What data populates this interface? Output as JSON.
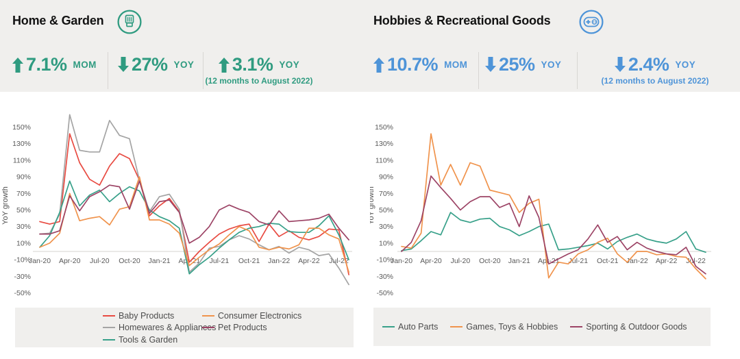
{
  "header": {
    "panels": [
      {
        "title": "Home & Garden",
        "icon": "blender-icon",
        "accent": "#2f9b80",
        "stats": [
          {
            "direction": "up",
            "value": "7.1%",
            "unit": "MOM",
            "caption": null
          },
          {
            "direction": "down",
            "value": "27%",
            "unit": "YOY",
            "caption": null
          },
          {
            "direction": "up",
            "value": "3.1%",
            "unit": "YOY",
            "caption": "(12 months to August 2022)"
          }
        ]
      },
      {
        "title": "Hobbies & Recreational Goods",
        "icon": "gamepad-icon",
        "accent": "#4e94d8",
        "stats": [
          {
            "direction": "up",
            "value": "10.7%",
            "unit": "MOM",
            "caption": null
          },
          {
            "direction": "down",
            "value": "25%",
            "unit": "YOY",
            "caption": null
          },
          {
            "direction": "down",
            "value": "2.4%",
            "unit": "YOY",
            "caption": "(12 months to August 2022)"
          }
        ]
      }
    ]
  },
  "chart_data": [
    {
      "type": "line",
      "title": "Home & Garden",
      "ylabel": "YoY growth",
      "ylim": [
        -50,
        170
      ],
      "yticks": [
        150,
        130,
        110,
        90,
        70,
        50,
        30,
        10,
        -10,
        -30,
        -50
      ],
      "x_tick_every": 3,
      "grid": "zero-line-only",
      "legend_position": "bottom",
      "x": [
        "Jan-20",
        "Feb-20",
        "Mar-20",
        "Apr-20",
        "May-20",
        "Jun-20",
        "Jul-20",
        "Aug-20",
        "Sep-20",
        "Oct-20",
        "Nov-20",
        "Dec-20",
        "Jan-21",
        "Feb-21",
        "Mar-21",
        "Apr-21",
        "May-21",
        "Jun-21",
        "Jul-21",
        "Aug-21",
        "Sep-21",
        "Oct-21",
        "Nov-21",
        "Dec-21",
        "Jan-22",
        "Feb-22",
        "Mar-22",
        "Apr-22",
        "May-22",
        "Jun-22",
        "Jul-22",
        "Aug-22"
      ],
      "series": [
        {
          "name": "Baby Products",
          "color": "#e84a41",
          "values": [
            36,
            33,
            36,
            142,
            107,
            87,
            80,
            103,
            118,
            112,
            86,
            43,
            55,
            64,
            48,
            -13,
            0,
            11,
            21,
            27,
            31,
            33,
            12,
            33,
            18,
            25,
            17,
            14,
            18,
            27,
            26,
            -28
          ]
        },
        {
          "name": "Homewares & Appliances",
          "color": "#a4a4a4",
          "values": [
            21,
            22,
            45,
            165,
            122,
            120,
            120,
            158,
            140,
            136,
            86,
            48,
            66,
            69,
            51,
            -25,
            -14,
            4,
            6,
            14,
            19,
            15,
            8,
            2,
            6,
            -2,
            5,
            2,
            -5,
            -3,
            -20,
            -40
          ]
        },
        {
          "name": "Tools & Garden",
          "color": "#37a089",
          "values": [
            5,
            19,
            47,
            85,
            55,
            68,
            74,
            60,
            70,
            78,
            73,
            50,
            42,
            37,
            28,
            -27,
            -16,
            -7,
            4,
            14,
            23,
            28,
            30,
            34,
            33,
            24,
            23,
            23,
            31,
            43,
            20,
            -10
          ]
        },
        {
          "name": "Consumer Electronics",
          "color": "#f0934c",
          "values": [
            5,
            10,
            22,
            70,
            37,
            40,
            42,
            32,
            51,
            54,
            90,
            38,
            38,
            33,
            22,
            -17,
            -7,
            2,
            9,
            20,
            30,
            25,
            5,
            2,
            5,
            3,
            8,
            28,
            28,
            20,
            15,
            -25
          ]
        },
        {
          "name": "Pet Products",
          "color": "#9c4365",
          "values": [
            21,
            21,
            25,
            67,
            49,
            66,
            72,
            80,
            78,
            51,
            85,
            46,
            60,
            62,
            47,
            10,
            17,
            30,
            50,
            56,
            51,
            47,
            36,
            32,
            49,
            36,
            37,
            38,
            40,
            45,
            28,
            14
          ]
        }
      ],
      "legend_order": [
        0,
        3,
        1,
        4,
        2
      ]
    },
    {
      "type": "line",
      "title": "Hobbies & Recreational Goods",
      "ylabel": "YoY growth",
      "ylim": [
        -50,
        170
      ],
      "yticks": [
        150,
        130,
        110,
        90,
        70,
        50,
        30,
        10,
        -10,
        -30,
        -50
      ],
      "x_tick_every": 3,
      "grid": "zero-line-only",
      "legend_position": "bottom",
      "x": [
        "Jan-20",
        "Feb-20",
        "Mar-20",
        "Apr-20",
        "May-20",
        "Jun-20",
        "Jul-20",
        "Aug-20",
        "Sep-20",
        "Oct-20",
        "Nov-20",
        "Dec-20",
        "Jan-21",
        "Feb-21",
        "Mar-21",
        "Apr-21",
        "May-21",
        "Jun-21",
        "Jul-21",
        "Aug-21",
        "Sep-21",
        "Oct-21",
        "Nov-21",
        "Dec-21",
        "Jan-22",
        "Feb-22",
        "Mar-22",
        "Apr-22",
        "May-22",
        "Jun-22",
        "Jul-22",
        "Aug-22"
      ],
      "series": [
        {
          "name": "Auto Parts",
          "color": "#37a089",
          "values": [
            1,
            3,
            13,
            24,
            20,
            47,
            38,
            35,
            39,
            40,
            30,
            26,
            19,
            24,
            30,
            33,
            2,
            3,
            5,
            7,
            10,
            3,
            12,
            17,
            21,
            15,
            12,
            10,
            15,
            24,
            3,
            -1
          ]
        },
        {
          "name": "Games, Toys & Hobbies",
          "color": "#f0934c",
          "values": [
            6,
            4,
            22,
            142,
            80,
            105,
            80,
            107,
            103,
            74,
            71,
            68,
            47,
            58,
            63,
            -32,
            -13,
            -15,
            -3,
            2,
            11,
            16,
            -3,
            -13,
            0,
            0,
            -4,
            -3,
            -6,
            -7,
            -21,
            -33
          ]
        },
        {
          "name": "Sporting & Outdoor Goods",
          "color": "#9c4365",
          "values": [
            0,
            11,
            37,
            91,
            77,
            64,
            50,
            60,
            66,
            66,
            53,
            58,
            30,
            67,
            41,
            -15,
            -9,
            -3,
            2,
            15,
            32,
            11,
            18,
            2,
            11,
            4,
            0,
            -3,
            -4,
            5,
            -18,
            -27
          ]
        }
      ],
      "legend_order": [
        0,
        1,
        2
      ]
    }
  ]
}
